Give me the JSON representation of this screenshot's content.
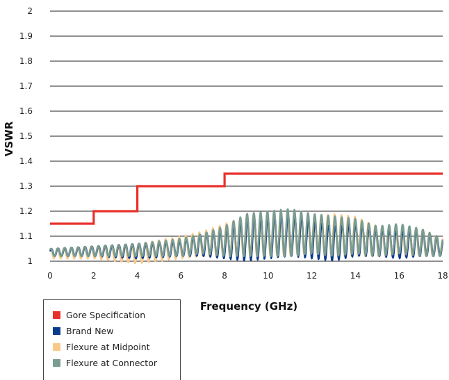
{
  "chart_data": {
    "type": "line",
    "title": "",
    "xlabel": "Frequency (GHz)",
    "ylabel": "VSWR",
    "xlim": [
      0,
      18
    ],
    "ylim": [
      1,
      2
    ],
    "x_ticks": [
      "0",
      "2",
      "4",
      "6",
      "8",
      "10",
      "12",
      "14",
      "16",
      "18"
    ],
    "y_ticks": [
      "1",
      "1.1",
      "1.2",
      "1.3",
      "1.4",
      "1.5",
      "1.6",
      "1.7",
      "1.8",
      "1.9",
      "2"
    ],
    "grid": "horizontal",
    "legend_position": "bottom-left",
    "series": [
      {
        "name": "Gore Specification",
        "color": "#e8302a",
        "style": "step",
        "x": [
          0,
          2,
          2,
          4,
          4,
          8,
          8,
          18
        ],
        "y": [
          1.15,
          1.15,
          1.2,
          1.2,
          1.3,
          1.3,
          1.35,
          1.35
        ]
      },
      {
        "name": "Brand New",
        "color": "#0a3a8c",
        "style": "oscillating",
        "envelope_x": [
          0,
          2,
          4,
          6,
          7,
          8,
          9,
          10,
          11,
          12,
          13,
          14,
          15,
          16,
          17,
          18
        ],
        "envelope_min": [
          1.02,
          1.02,
          1.01,
          1.02,
          1.02,
          1.01,
          1.0,
          1.01,
          1.02,
          1.01,
          1.0,
          1.02,
          1.02,
          1.01,
          1.02,
          1.02
        ],
        "envelope_max": [
          1.05,
          1.06,
          1.07,
          1.08,
          1.11,
          1.12,
          1.17,
          1.18,
          1.19,
          1.16,
          1.14,
          1.15,
          1.13,
          1.12,
          1.12,
          1.09
        ],
        "period_ghz": 0.31,
        "phase": 0.3
      },
      {
        "name": "Flexure at Midpoint",
        "color": "#f9c98a",
        "style": "oscillating",
        "envelope_x": [
          0,
          2,
          4,
          6,
          7,
          8,
          9,
          10,
          11,
          12,
          13,
          14,
          15,
          16,
          17,
          18
        ],
        "envelope_min": [
          1.01,
          1.01,
          0.99,
          1.01,
          1.02,
          1.02,
          1.02,
          1.02,
          1.02,
          1.03,
          1.02,
          1.02,
          1.02,
          1.02,
          1.02,
          1.02
        ],
        "envelope_max": [
          1.05,
          1.06,
          1.07,
          1.1,
          1.12,
          1.15,
          1.18,
          1.19,
          1.18,
          1.18,
          1.19,
          1.18,
          1.14,
          1.12,
          1.13,
          1.09
        ],
        "period_ghz": 0.31,
        "phase": 1.1
      },
      {
        "name": "Flexure at  Connector",
        "color": "#7a9c91",
        "style": "oscillating",
        "envelope_x": [
          0,
          2,
          4,
          6,
          7,
          8,
          9,
          10,
          11,
          12,
          13,
          14,
          15,
          16,
          17,
          18
        ],
        "envelope_min": [
          1.02,
          1.02,
          1.02,
          1.02,
          1.03,
          1.02,
          1.02,
          1.02,
          1.02,
          1.03,
          1.02,
          1.03,
          1.02,
          1.03,
          1.02,
          1.02
        ],
        "envelope_max": [
          1.05,
          1.06,
          1.07,
          1.09,
          1.11,
          1.14,
          1.19,
          1.2,
          1.21,
          1.19,
          1.18,
          1.17,
          1.14,
          1.15,
          1.13,
          1.09
        ],
        "period_ghz": 0.31,
        "phase": 0.7
      }
    ]
  }
}
